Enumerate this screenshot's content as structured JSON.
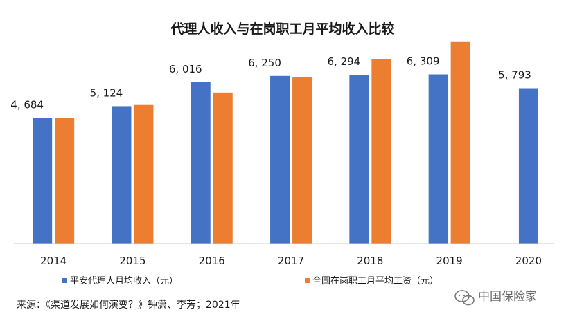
{
  "chart_data": {
    "type": "bar",
    "title": "代理人收入与在岗职工月平均收入比较",
    "categories": [
      "2014",
      "2015",
      "2016",
      "2017",
      "2018",
      "2019",
      "2020"
    ],
    "series": [
      {
        "name": "平安代理人月均收入（元）",
        "color": "#4472C4",
        "values": [
          4684,
          5124,
          6016,
          6250,
          6294,
          6309,
          5793
        ],
        "labels": [
          "4, 684",
          "5, 124",
          "6, 016",
          "6, 250",
          "6, 294",
          "6, 309",
          "5, 793"
        ]
      },
      {
        "name": "全国在岗职工月平均工资（元）",
        "color": "#ED7D31",
        "values": [
          4695,
          5169,
          5630,
          6193,
          6868,
          7542,
          null
        ]
      }
    ],
    "ylim": [
      0,
      8000
    ],
    "grid": false,
    "legend": "bottom",
    "xlabel": "",
    "ylabel": ""
  },
  "source": "来源：《渠道发展如何演变？》钟潇、李芳；2021年",
  "watermark": "中国保险家"
}
